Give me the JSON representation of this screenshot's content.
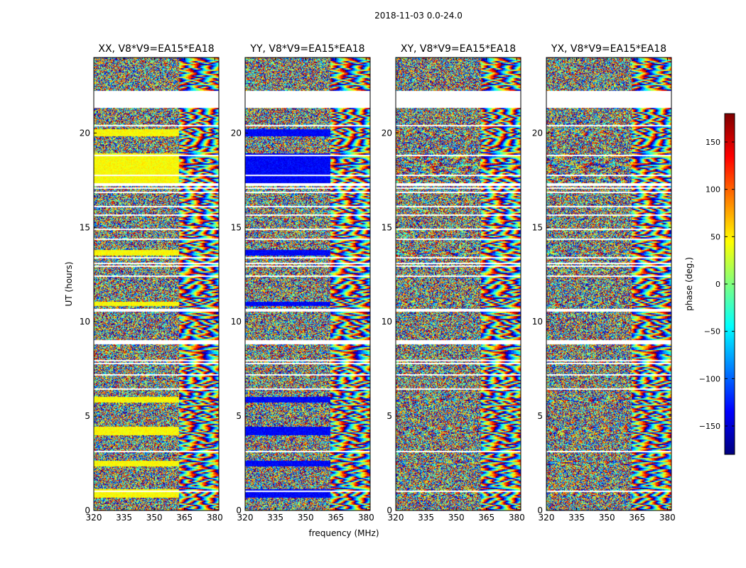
{
  "chart_data": {
    "type": "heatmap",
    "suptitle": "2018-11-03 0.0-24.0",
    "xlabel": "frequency (MHz)",
    "ylabel": "UT (hours)",
    "xlim": [
      320,
      382
    ],
    "ylim": [
      0,
      24
    ],
    "xticks": [
      320,
      335,
      350,
      365,
      380
    ],
    "yticks": [
      0,
      5,
      10,
      15,
      20
    ],
    "colorbar": {
      "label": "phase (deg.)",
      "range": [
        -180,
        180
      ],
      "ticks": [
        150,
        100,
        50,
        0,
        -50,
        -100,
        -150
      ],
      "tick_labels": [
        "150",
        "100",
        "50",
        "0",
        "−50",
        "−100",
        "−150"
      ],
      "colormap": "jet",
      "colors": [
        "#00007f",
        "#0000ff",
        "#007fff",
        "#00ffff",
        "#7fff7f",
        "#ffff00",
        "#ff7f00",
        "#ff0000",
        "#7f0000"
      ]
    },
    "panels": [
      {
        "title": "XX, V8*V9=EA15*EA18",
        "band_phase": 45
      },
      {
        "title": "YY, V8*V9=EA15*EA18",
        "band_phase": -135
      },
      {
        "title": "XY, V8*V9=EA15*EA18",
        "band_phase": null
      },
      {
        "title": "YX, V8*V9=EA15*EA18",
        "band_phase": null
      }
    ],
    "blank_ut_ranges": [
      [
        21.3,
        22.2
      ],
      [
        8.8,
        9.0
      ],
      [
        16.05,
        16.15
      ]
    ],
    "coherent_ut_ranges": [
      [
        17.2,
        18.9
      ],
      [
        4.0,
        4.4
      ],
      [
        5.7,
        6.0
      ],
      [
        2.3,
        2.6
      ],
      [
        13.5,
        13.8
      ],
      [
        19.8,
        20.2
      ],
      [
        10.8,
        11.0
      ],
      [
        0.7,
        1.1
      ]
    ],
    "coherent_freq_max": 362
  }
}
